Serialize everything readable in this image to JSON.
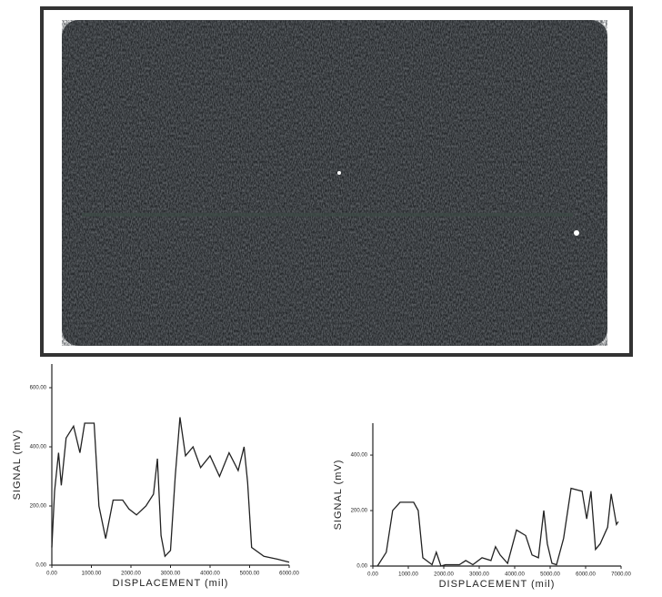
{
  "chart_data": [
    {
      "type": "line",
      "x_label": "DISPLACEMENT (mil)",
      "y_label": "SIGNAL (mV)",
      "xlim": [
        0,
        6000
      ],
      "ylim": [
        0,
        680
      ],
      "xticks": [
        {
          "value": 0,
          "label": "0.00"
        },
        {
          "value": 1000,
          "label": "1000.00"
        },
        {
          "value": 2000,
          "label": "2000.00"
        },
        {
          "value": 3000,
          "label": "3000.00"
        },
        {
          "value": 4000,
          "label": "4000.00"
        },
        {
          "value": 5000,
          "label": "5000.00"
        },
        {
          "value": 6000,
          "label": "6000.00"
        }
      ],
      "yticks": [
        {
          "value": 0,
          "label": "0.00"
        },
        {
          "value": 200,
          "label": "200.00"
        },
        {
          "value": 400,
          "label": "400.00"
        },
        {
          "value": 600,
          "label": "600.00"
        }
      ],
      "color": "#222",
      "x": [
        0,
        70,
        170,
        240,
        360,
        550,
        710,
        830,
        1070,
        1190,
        1360,
        1550,
        1790,
        1950,
        2140,
        2380,
        2570,
        2670,
        2760,
        2860,
        3000,
        3120,
        3240,
        3380,
        3570,
        3760,
        4000,
        4240,
        4480,
        4710,
        4860,
        4950,
        5050,
        5360,
        5710,
        6000
      ],
      "values": [
        60,
        250,
        380,
        270,
        430,
        470,
        380,
        480,
        480,
        200,
        90,
        220,
        220,
        190,
        170,
        200,
        240,
        360,
        100,
        30,
        50,
        300,
        500,
        370,
        400,
        330,
        370,
        300,
        380,
        320,
        400,
        280,
        60,
        30,
        20,
        10
      ]
    },
    {
      "type": "line",
      "x_label": "DISPLACEMENT (mil)",
      "y_label": "SIGNAL (mV)",
      "xlim": [
        0,
        7000
      ],
      "ylim": [
        0,
        515
      ],
      "xticks": [
        {
          "value": 0,
          "label": "0.00"
        },
        {
          "value": 1000,
          "label": "1000.00"
        },
        {
          "value": 2000,
          "label": "2000.00"
        },
        {
          "value": 3000,
          "label": "3000.00"
        },
        {
          "value": 4000,
          "label": "4000.00"
        },
        {
          "value": 5000,
          "label": "5000.00"
        },
        {
          "value": 6000,
          "label": "6000.00"
        },
        {
          "value": 7000,
          "label": "7000.00"
        }
      ],
      "yticks": [
        {
          "value": 0,
          "label": "0.00"
        },
        {
          "value": 200,
          "label": "200.00"
        },
        {
          "value": 400,
          "label": "400.00"
        }
      ],
      "color": "#222",
      "x": [
        130,
        380,
        560,
        770,
        1150,
        1280,
        1410,
        1670,
        1790,
        1920,
        2050,
        2440,
        2620,
        2820,
        3080,
        3330,
        3460,
        3590,
        3800,
        4050,
        4310,
        4490,
        4670,
        4820,
        4920,
        5050,
        5180,
        5380,
        5590,
        5900,
        6030,
        6150,
        6280,
        6410,
        6620,
        6720,
        6870,
        6920
      ],
      "values": [
        0,
        50,
        200,
        230,
        230,
        200,
        30,
        5,
        50,
        0,
        5,
        5,
        20,
        5,
        30,
        20,
        70,
        40,
        10,
        130,
        110,
        40,
        30,
        200,
        80,
        10,
        5,
        100,
        280,
        270,
        170,
        270,
        60,
        80,
        140,
        260,
        150,
        160
      ]
    }
  ]
}
